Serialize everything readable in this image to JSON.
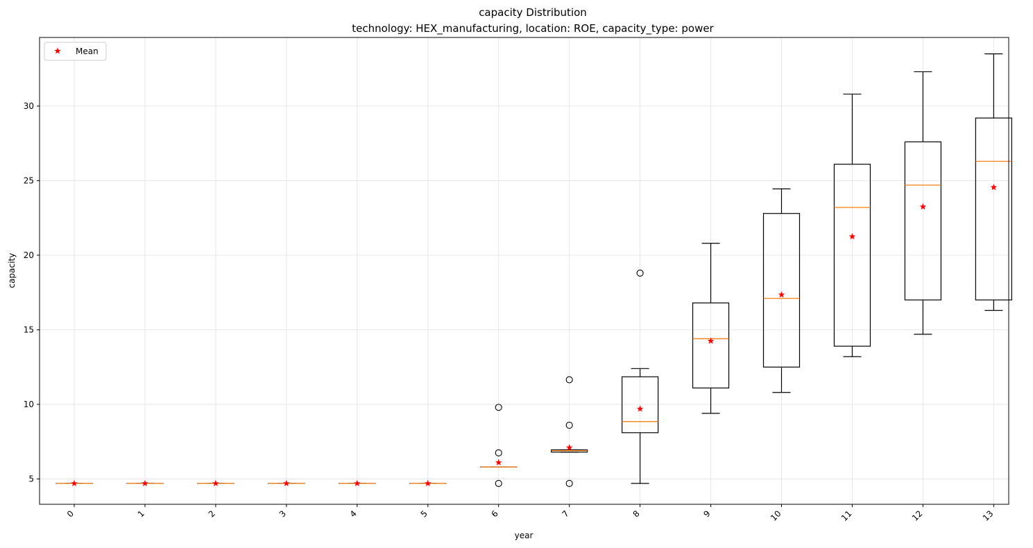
{
  "chart_data": {
    "type": "boxplot",
    "title": "capacity Distribution",
    "subtitle": "technology: HEX_manufacturing, location: ROE, capacity_type: power",
    "xlabel": "year",
    "ylabel": "capacity",
    "ylim": [
      3.3,
      34.6
    ],
    "yticks": [
      5,
      10,
      15,
      20,
      25,
      30
    ],
    "grid": true,
    "legend": {
      "placement": "top-left",
      "entries": [
        {
          "label": "Mean",
          "marker": "star",
          "color": "#ff0000"
        }
      ]
    },
    "colors": {
      "box": "#000000",
      "median": "#ff7f0e",
      "mean": "#ff0000",
      "grid": "#e6e6e6"
    },
    "categories": [
      "0",
      "1",
      "2",
      "3",
      "4",
      "5",
      "6",
      "7",
      "8",
      "9",
      "10",
      "11",
      "12",
      "13"
    ],
    "boxes": [
      {
        "x": "0",
        "whislo": 4.7,
        "q1": 4.7,
        "med": 4.7,
        "q3": 4.7,
        "whishi": 4.7,
        "mean": 4.7,
        "fliers": []
      },
      {
        "x": "1",
        "whislo": 4.7,
        "q1": 4.7,
        "med": 4.7,
        "q3": 4.7,
        "whishi": 4.7,
        "mean": 4.7,
        "fliers": []
      },
      {
        "x": "2",
        "whislo": 4.7,
        "q1": 4.7,
        "med": 4.7,
        "q3": 4.7,
        "whishi": 4.7,
        "mean": 4.7,
        "fliers": []
      },
      {
        "x": "3",
        "whislo": 4.7,
        "q1": 4.7,
        "med": 4.7,
        "q3": 4.7,
        "whishi": 4.7,
        "mean": 4.7,
        "fliers": []
      },
      {
        "x": "4",
        "whislo": 4.7,
        "q1": 4.7,
        "med": 4.7,
        "q3": 4.7,
        "whishi": 4.7,
        "mean": 4.7,
        "fliers": []
      },
      {
        "x": "5",
        "whislo": 4.7,
        "q1": 4.7,
        "med": 4.7,
        "q3": 4.7,
        "whishi": 4.7,
        "mean": 4.7,
        "fliers": []
      },
      {
        "x": "6",
        "whislo": 5.8,
        "q1": 5.8,
        "med": 5.8,
        "q3": 5.8,
        "whishi": 5.8,
        "mean": 6.1,
        "fliers": [
          4.7,
          6.75,
          9.8
        ]
      },
      {
        "x": "7",
        "whislo": 6.8,
        "q1": 6.8,
        "med": 6.9,
        "q3": 6.95,
        "whishi": 6.95,
        "mean": 7.1,
        "fliers": [
          4.7,
          8.6,
          11.65
        ]
      },
      {
        "x": "8",
        "whislo": 4.7,
        "q1": 8.1,
        "med": 8.85,
        "q3": 11.85,
        "whishi": 12.4,
        "mean": 9.7,
        "fliers": [
          18.8
        ]
      },
      {
        "x": "9",
        "whislo": 9.4,
        "q1": 11.1,
        "med": 14.4,
        "q3": 16.8,
        "whishi": 20.8,
        "mean": 14.25,
        "fliers": []
      },
      {
        "x": "10",
        "whislo": 10.8,
        "q1": 12.5,
        "med": 17.1,
        "q3": 22.8,
        "whishi": 24.45,
        "mean": 17.35,
        "fliers": []
      },
      {
        "x": "11",
        "whislo": 13.2,
        "q1": 13.9,
        "med": 23.2,
        "q3": 26.1,
        "whishi": 30.8,
        "mean": 21.25,
        "fliers": []
      },
      {
        "x": "12",
        "whislo": 14.7,
        "q1": 17.0,
        "med": 24.7,
        "q3": 27.6,
        "whishi": 32.3,
        "mean": 23.25,
        "fliers": []
      },
      {
        "x": "13",
        "whislo": 16.3,
        "q1": 17.0,
        "med": 26.3,
        "q3": 29.2,
        "whishi": 33.5,
        "mean": 24.55,
        "fliers": []
      }
    ]
  }
}
